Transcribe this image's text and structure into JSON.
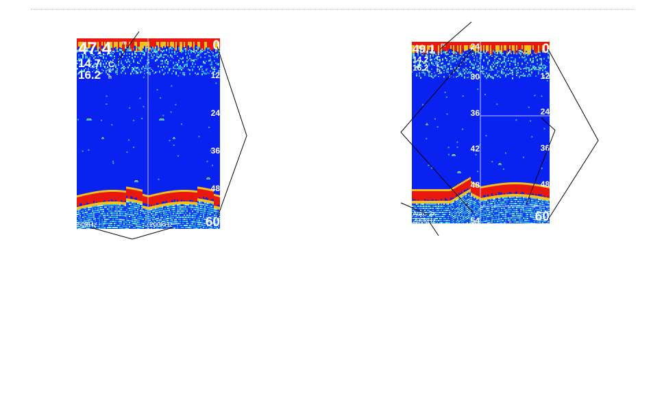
{
  "screen1": {
    "readings": {
      "depth": "47.4",
      "depth_unit": "m",
      "temp": "14.7",
      "temp_unit": "C",
      "speed": "16.2",
      "speed_unit_top": "k",
      "speed_unit_bottom": "h"
    },
    "scale_top": "0",
    "scale": [
      "12",
      "24",
      "36",
      "48"
    ],
    "scale_bottom": "60",
    "freq_left": "50kHz",
    "freq_right": "200kHz"
  },
  "screen2": {
    "readings": {
      "depth": "49.1",
      "depth_unit": "m",
      "temp": "14.2",
      "temp_unit": "C",
      "speed": "16.2",
      "speed_unit_top": "k",
      "speed_unit_bottom": "h"
    },
    "zoom_scale": [
      "24",
      "30",
      "36",
      "42",
      "48",
      "54"
    ],
    "scale_top": "0",
    "scale": [
      "12",
      "24",
      "36",
      "48"
    ],
    "scale_bottom": "60",
    "zoom_mode": "Auto 2x",
    "freq": "200kHz"
  },
  "colors": {
    "water": "#0a22f0",
    "bottom": "#e8180c",
    "noise": "#2fb8e0",
    "line": "#000000"
  }
}
